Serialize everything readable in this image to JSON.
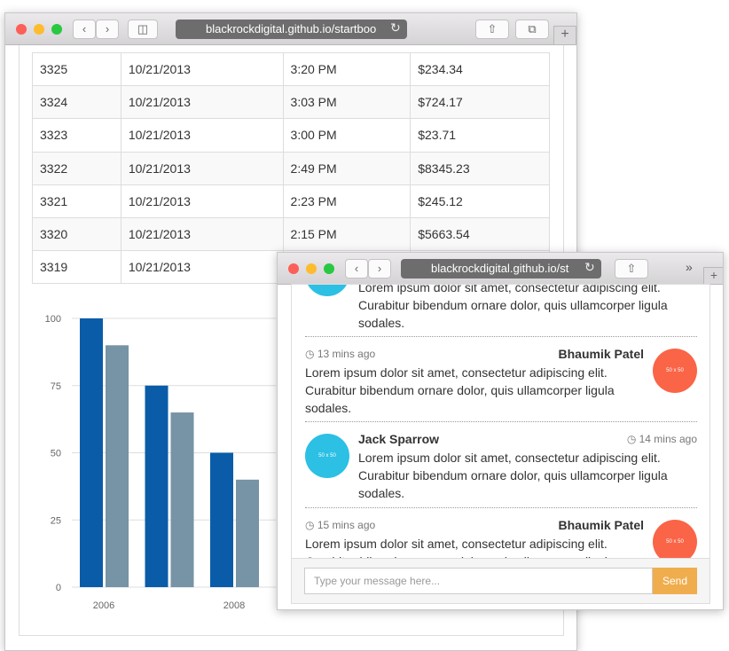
{
  "window_1": {
    "address": "blackrockdigital.github.io/startboo"
  },
  "table": {
    "rows": [
      [
        "3325",
        "10/21/2013",
        "3:20 PM",
        "$234.34"
      ],
      [
        "3324",
        "10/21/2013",
        "3:03 PM",
        "$724.17"
      ],
      [
        "3323",
        "10/21/2013",
        "3:00 PM",
        "$23.71"
      ],
      [
        "3322",
        "10/21/2013",
        "2:49 PM",
        "$8345.23"
      ],
      [
        "3321",
        "10/21/2013",
        "2:23 PM",
        "$245.12"
      ],
      [
        "3320",
        "10/21/2013",
        "2:15 PM",
        "$5663.54"
      ],
      [
        "3319",
        "10/21/2013"
      ]
    ]
  },
  "chart_data": {
    "type": "bar",
    "categories": [
      "2006",
      null,
      "2008"
    ],
    "series": [
      {
        "name": null,
        "color": "#0a5ca8",
        "values": [
          100,
          75,
          50
        ]
      },
      {
        "name": null,
        "color": "#7793a6",
        "values": [
          90,
          65,
          40
        ]
      }
    ],
    "ylim": [
      0,
      100
    ],
    "yticks": [
      0,
      25,
      50,
      75,
      100
    ],
    "grid": true
  },
  "window_2": {
    "address": "blackrockdigital.github.io/st"
  },
  "chat": {
    "messages": [
      {
        "side": "left",
        "body": "Lorem ipsum dolor sit amet, consectetur adipiscing elit. Curabitur bibendum ornare dolor, quis ullamcorper ligula sodales."
      },
      {
        "side": "right",
        "time": "13 mins ago",
        "name": "Bhaumik Patel",
        "avatar": "50 x 50",
        "body": "Lorem ipsum dolor sit amet, consectetur adipiscing elit. Curabitur bibendum ornare dolor, quis ullamcorper ligula sodales."
      },
      {
        "side": "left",
        "time": "14 mins ago",
        "name": "Jack Sparrow",
        "avatar": "50 x 50",
        "body": "Lorem ipsum dolor sit amet, consectetur adipiscing elit. Curabitur bibendum ornare dolor, quis ullamcorper ligula sodales."
      },
      {
        "side": "right",
        "time": "15 mins ago",
        "name": "Bhaumik Patel",
        "avatar": "50 x 50",
        "body": "Lorem ipsum dolor sit amet, consectetur adipiscing elit. Curabitur bibendum ornare dolor, quis ullamcorper ligula sodales."
      }
    ],
    "placeholder": "Type your message here...",
    "send": "Send"
  }
}
